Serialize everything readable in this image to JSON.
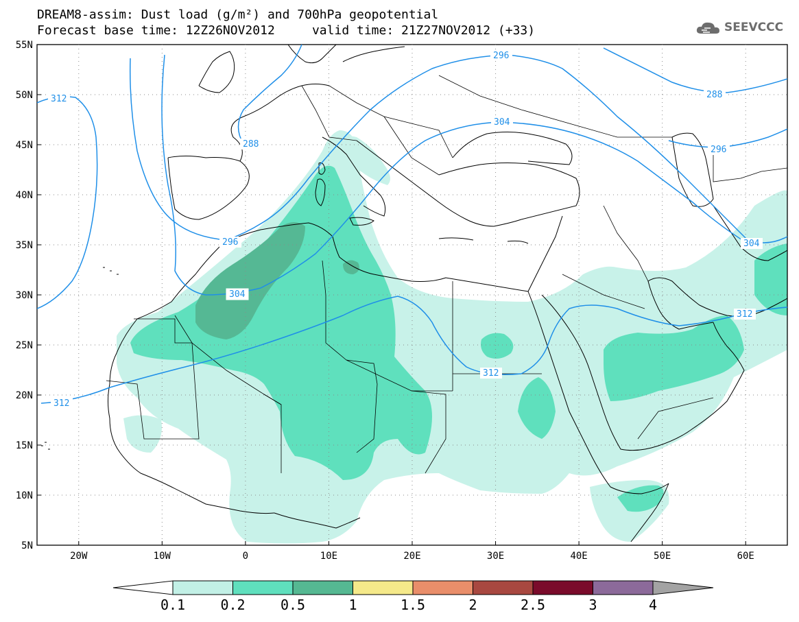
{
  "title_line1": "DREAM8-assim: Dust load (g/m²) and 700hPa geopotential",
  "title_line2": "Forecast base time: 12Z26NOV2012     valid time: 21Z27NOV2012 (+33)",
  "logo_text": "SEEVCCC",
  "map": {
    "lat_labels": [
      "55N",
      "50N",
      "45N",
      "40N",
      "35N",
      "30N",
      "25N",
      "20N",
      "15N",
      "10N",
      "5N"
    ],
    "lon_labels": [
      "20W",
      "10W",
      "0",
      "10E",
      "20E",
      "30E",
      "40E",
      "50E",
      "60E"
    ],
    "contour_labels": [
      "288",
      "296",
      "304",
      "312"
    ],
    "contour_colors": {
      "line": "#1f8fe8"
    },
    "dust_colors": {
      "0.1-0.2": "#c8f2e9",
      "0.2-0.5": "#5fe0bd",
      "0.5-1": "#55b894"
    }
  },
  "colorbar": {
    "ticks": [
      "0.1",
      "0.2",
      "0.5",
      "1",
      "1.5",
      "2",
      "2.5",
      "3",
      "4"
    ],
    "colors": [
      "#ffffff",
      "#c2f0e6",
      "#5fdfbd",
      "#55b892",
      "#f5e98a",
      "#e98e6a",
      "#a84840",
      "#7a0b2b",
      "#8c6a9a",
      "#a3a3a3"
    ]
  }
}
